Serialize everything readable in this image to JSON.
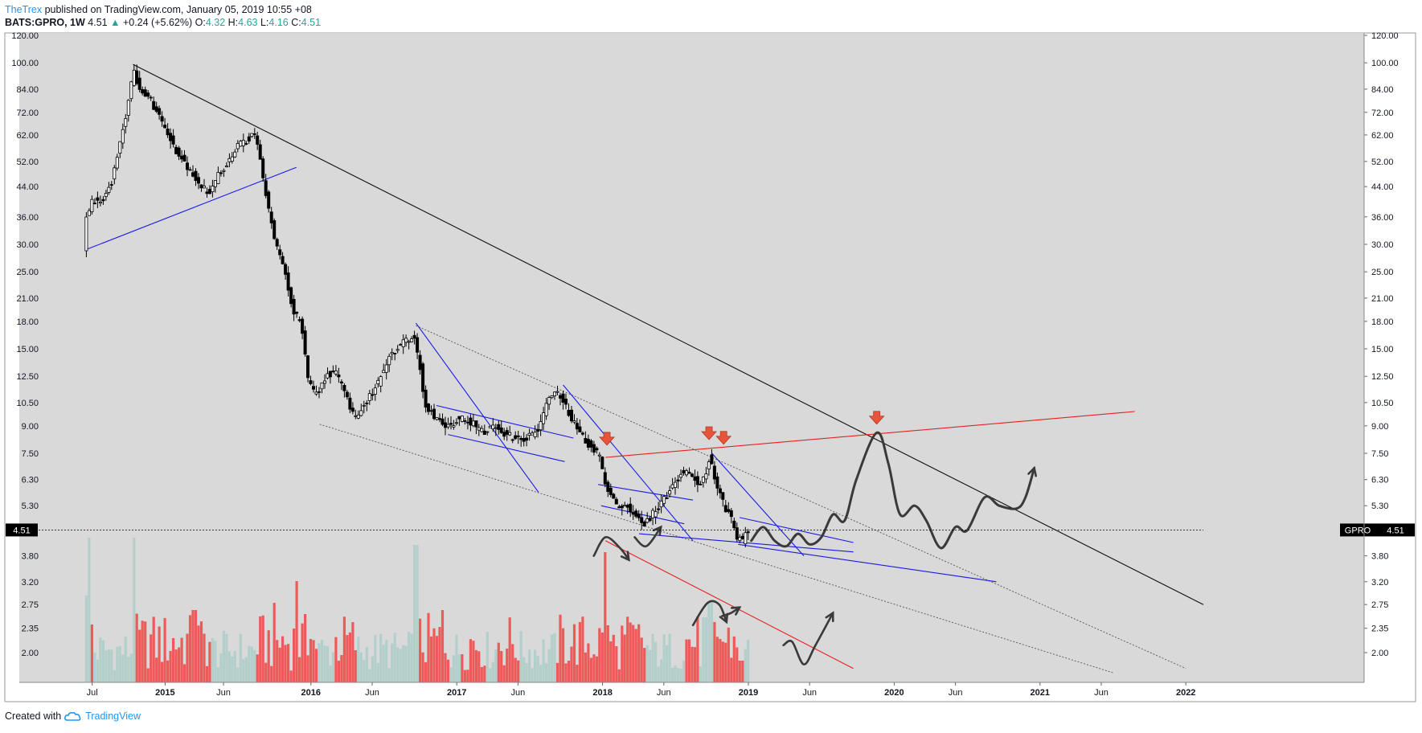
{
  "header": {
    "author": "TheTrex",
    "published": "published on TradingView.com, January 05, 2019 10:55 +08",
    "symbol": "BATS:GPRO, 1W",
    "last": "4.51",
    "change_arrow": "▲",
    "change": "+0.24 (+5.62%)",
    "o_label": "O:",
    "o": "4.32",
    "h_label": "H:",
    "h": "4.63",
    "l_label": "L:",
    "l": "4.16",
    "c_label": "C:",
    "c": "4.51"
  },
  "footer": {
    "created": "Created with",
    "brand": "TradingView"
  },
  "colors": {
    "background": "#d9d9d9",
    "candle": "#000000",
    "volume_up": "#b3cfcc",
    "volume_down": "#ee5a5a",
    "trendline_blue": "#1a1ae6",
    "trendline_red": "#e62222",
    "arrow_marker": "#e8543a",
    "drawing": "#3a3a3a"
  },
  "chart_data": {
    "type": "candlestick",
    "symbol_label": "GPRO",
    "last_price": 4.51,
    "last_price_label": "4.51",
    "y_scale": "log",
    "ylim": [
      1.75,
      120
    ],
    "price_ticks": [
      "120.00",
      "100.00",
      "84.00",
      "72.00",
      "62.00",
      "52.00",
      "44.00",
      "36.00",
      "30.00",
      "25.00",
      "21.00",
      "18.00",
      "15.00",
      "12.50",
      "10.50",
      "9.00",
      "7.50",
      "6.30",
      "5.30",
      "3.80",
      "3.20",
      "2.75",
      "2.35",
      "2.00"
    ],
    "time_ticks": [
      {
        "label": "Jul",
        "t": 2014.5,
        "bold": false
      },
      {
        "label": "2015",
        "t": 2015.0,
        "bold": true
      },
      {
        "label": "Jun",
        "t": 2015.4,
        "bold": false
      },
      {
        "label": "2016",
        "t": 2016.0,
        "bold": true
      },
      {
        "label": "Jun",
        "t": 2016.42,
        "bold": false
      },
      {
        "label": "2017",
        "t": 2017.0,
        "bold": true
      },
      {
        "label": "Jun",
        "t": 2017.42,
        "bold": false
      },
      {
        "label": "2018",
        "t": 2018.0,
        "bold": true
      },
      {
        "label": "Jun",
        "t": 2018.42,
        "bold": false
      },
      {
        "label": "2019",
        "t": 2019.0,
        "bold": true
      },
      {
        "label": "Jun",
        "t": 2019.42,
        "bold": false
      },
      {
        "label": "2020",
        "t": 2020.0,
        "bold": true
      },
      {
        "label": "Jun",
        "t": 2020.42,
        "bold": false
      },
      {
        "label": "2021",
        "t": 2021.0,
        "bold": true
      },
      {
        "label": "Jun",
        "t": 2021.42,
        "bold": false
      },
      {
        "label": "2022",
        "t": 2022.0,
        "bold": true
      }
    ],
    "xlim": [
      2014.0,
      2022.12
    ],
    "price_path": [
      [
        2014.46,
        29
      ],
      [
        2014.48,
        36
      ],
      [
        2014.52,
        40
      ],
      [
        2014.58,
        40
      ],
      [
        2014.65,
        45
      ],
      [
        2014.72,
        62
      ],
      [
        2014.78,
        82
      ],
      [
        2014.8,
        95
      ],
      [
        2014.86,
        82
      ],
      [
        2014.92,
        78
      ],
      [
        2014.98,
        70
      ],
      [
        2015.05,
        62
      ],
      [
        2015.1,
        55
      ],
      [
        2015.18,
        50
      ],
      [
        2015.25,
        45
      ],
      [
        2015.32,
        42
      ],
      [
        2015.38,
        47
      ],
      [
        2015.45,
        52
      ],
      [
        2015.52,
        58
      ],
      [
        2015.58,
        60
      ],
      [
        2015.63,
        62
      ],
      [
        2015.66,
        56
      ],
      [
        2015.7,
        44
      ],
      [
        2015.75,
        34
      ],
      [
        2015.8,
        28
      ],
      [
        2015.85,
        24
      ],
      [
        2015.9,
        19
      ],
      [
        2015.95,
        18
      ],
      [
        2016.0,
        12
      ],
      [
        2016.06,
        11
      ],
      [
        2016.12,
        12.5
      ],
      [
        2016.18,
        13
      ],
      [
        2016.24,
        11.5
      ],
      [
        2016.32,
        9.5
      ],
      [
        2016.4,
        10.5
      ],
      [
        2016.48,
        12
      ],
      [
        2016.56,
        14.5
      ],
      [
        2016.64,
        15.5
      ],
      [
        2016.72,
        16.5
      ],
      [
        2016.76,
        14
      ],
      [
        2016.8,
        10.5
      ],
      [
        2016.88,
        9.4
      ],
      [
        2016.96,
        9.0
      ],
      [
        2017.04,
        9.5
      ],
      [
        2017.12,
        9.2
      ],
      [
        2017.2,
        8.6
      ],
      [
        2017.28,
        9.0
      ],
      [
        2017.36,
        8.5
      ],
      [
        2017.44,
        8.2
      ],
      [
        2017.52,
        8.4
      ],
      [
        2017.58,
        8.8
      ],
      [
        2017.62,
        10.0
      ],
      [
        2017.68,
        11.3
      ],
      [
        2017.74,
        10.8
      ],
      [
        2017.8,
        9.5
      ],
      [
        2017.86,
        8.6
      ],
      [
        2017.92,
        8.0
      ],
      [
        2018.0,
        7.4
      ],
      [
        2018.04,
        6.0
      ],
      [
        2018.1,
        5.4
      ],
      [
        2018.18,
        5.3
      ],
      [
        2018.24,
        5.0
      ],
      [
        2018.3,
        4.6
      ],
      [
        2018.36,
        5.0
      ],
      [
        2018.42,
        5.4
      ],
      [
        2018.5,
        6.0
      ],
      [
        2018.56,
        6.6
      ],
      [
        2018.62,
        6.5
      ],
      [
        2018.68,
        6.2
      ],
      [
        2018.72,
        6.4
      ],
      [
        2018.75,
        7.3
      ],
      [
        2018.78,
        6.6
      ],
      [
        2018.82,
        5.8
      ],
      [
        2018.86,
        5.2
      ],
      [
        2018.9,
        4.9
      ],
      [
        2018.94,
        4.3
      ],
      [
        2018.98,
        4.2
      ],
      [
        2019.01,
        4.51
      ]
    ],
    "volume_scale_max": 100,
    "volume_path_up": [
      [
        2014.46,
        60
      ],
      [
        2014.48,
        100
      ],
      [
        2014.78,
        100
      ],
      [
        2016.72,
        95
      ],
      [
        2018.7,
        45
      ],
      [
        2018.74,
        55
      ]
    ],
    "volume_path_down": [
      [
        2014.5,
        40
      ],
      [
        2015.2,
        50
      ],
      [
        2015.75,
        55
      ],
      [
        2015.9,
        70
      ],
      [
        2016.0,
        30
      ],
      [
        2016.9,
        50
      ],
      [
        2018.02,
        90
      ],
      [
        2018.1,
        25
      ],
      [
        2018.8,
        30
      ],
      [
        2018.95,
        15
      ]
    ],
    "trendlines_blue": [
      [
        [
          2014.46,
          29
        ],
        [
          2015.9,
          50
        ]
      ],
      [
        [
          2016.72,
          17.8
        ],
        [
          2017.56,
          5.8
        ]
      ],
      [
        [
          2016.86,
          10.3
        ],
        [
          2017.8,
          8.3
        ]
      ],
      [
        [
          2016.94,
          8.5
        ],
        [
          2017.74,
          7.1
        ]
      ],
      [
        [
          2017.73,
          11.8
        ],
        [
          2018.62,
          4.2
        ]
      ],
      [
        [
          2017.99,
          5.3
        ],
        [
          2018.56,
          4.7
        ]
      ],
      [
        [
          2017.97,
          6.1
        ],
        [
          2018.62,
          5.5
        ]
      ],
      [
        [
          2018.25,
          4.4
        ],
        [
          2019.72,
          3.9
        ]
      ],
      [
        [
          2018.75,
          7.5
        ],
        [
          2019.38,
          3.8
        ]
      ],
      [
        [
          2018.94,
          4.9
        ],
        [
          2019.72,
          4.15
        ]
      ],
      [
        [
          2018.93,
          4.1
        ],
        [
          2020.7,
          3.2
        ]
      ]
    ],
    "trendlines_black": [
      [
        [
          2014.78,
          99
        ],
        [
          2022.12,
          2.75
        ]
      ]
    ],
    "trendlines_red": [
      [
        [
          2018.02,
          7.3
        ],
        [
          2021.65,
          9.9
        ]
      ],
      [
        [
          2018.02,
          4.2
        ],
        [
          2019.72,
          1.8
        ]
      ]
    ],
    "trendlines_dotted": [
      [
        [
          2016.06,
          9.1
        ],
        [
          2021.5,
          1.75
        ]
      ],
      [
        [
          2016.72,
          17.5
        ],
        [
          2022.0,
          1.8
        ]
      ]
    ],
    "arrow_markers": [
      [
        2018.03,
        8.0
      ],
      [
        2018.73,
        8.3
      ],
      [
        2018.83,
        8.05
      ],
      [
        2019.88,
        9.2
      ]
    ],
    "projection_path": [
      [
        2019.02,
        4.2
      ],
      [
        2019.1,
        4.6
      ],
      [
        2019.18,
        4.2
      ],
      [
        2019.26,
        4.05
      ],
      [
        2019.34,
        4.4
      ],
      [
        2019.42,
        4.1
      ],
      [
        2019.5,
        4.3
      ],
      [
        2019.58,
        5.0
      ],
      [
        2019.66,
        4.8
      ],
      [
        2019.74,
        6.3
      ],
      [
        2019.88,
        8.6
      ],
      [
        2019.96,
        7.0
      ],
      [
        2020.04,
        5.0
      ],
      [
        2020.14,
        5.3
      ],
      [
        2020.22,
        4.8
      ],
      [
        2020.32,
        4.0
      ],
      [
        2020.42,
        4.6
      ],
      [
        2020.5,
        4.5
      ],
      [
        2020.62,
        5.6
      ],
      [
        2020.72,
        5.3
      ],
      [
        2020.84,
        5.2
      ],
      [
        2020.9,
        5.6
      ],
      [
        2020.96,
        6.8
      ]
    ],
    "annotation_curves": [
      [
        [
          2017.94,
          3.8
        ],
        [
          2018.02,
          4.3
        ],
        [
          2018.12,
          4.0
        ],
        [
          2018.18,
          3.7
        ]
      ],
      [
        [
          2018.22,
          4.3
        ],
        [
          2018.3,
          4.05
        ],
        [
          2018.4,
          4.6
        ]
      ],
      [
        [
          2018.62,
          2.4
        ],
        [
          2018.72,
          2.78
        ],
        [
          2018.8,
          2.75
        ],
        [
          2018.85,
          2.45
        ]
      ],
      [
        [
          2018.82,
          2.55
        ],
        [
          2018.88,
          2.6
        ],
        [
          2018.94,
          2.7
        ]
      ],
      [
        [
          2019.24,
          2.1
        ],
        [
          2019.3,
          2.15
        ],
        [
          2019.38,
          1.85
        ],
        [
          2019.46,
          2.1
        ],
        [
          2019.58,
          2.6
        ]
      ]
    ]
  }
}
